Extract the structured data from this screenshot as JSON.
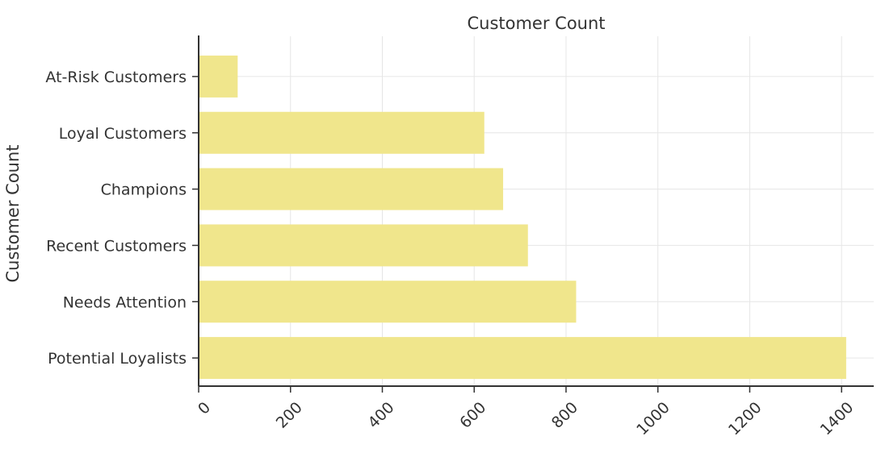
{
  "chart_data": {
    "type": "bar",
    "orientation": "horizontal",
    "title": "Customer Count",
    "xlabel": "",
    "ylabel": "Customer Count",
    "categories": [
      "At-Risk Customers",
      "Loyal Customers",
      "Champions",
      "Recent Customers",
      "Needs Attention",
      "Potential Loyalists"
    ],
    "values": [
      85,
      622,
      663,
      717,
      822,
      1410
    ],
    "xlim": [
      0,
      1470
    ],
    "xticks": [
      0,
      200,
      400,
      600,
      800,
      1000,
      1200,
      1400
    ],
    "xtick_rotation": 45,
    "grid": true,
    "legend": "none",
    "colors": {
      "bar": "#f0e68c",
      "axis": "#333333",
      "grid": "#e6e6e6",
      "text": "#333333"
    }
  }
}
